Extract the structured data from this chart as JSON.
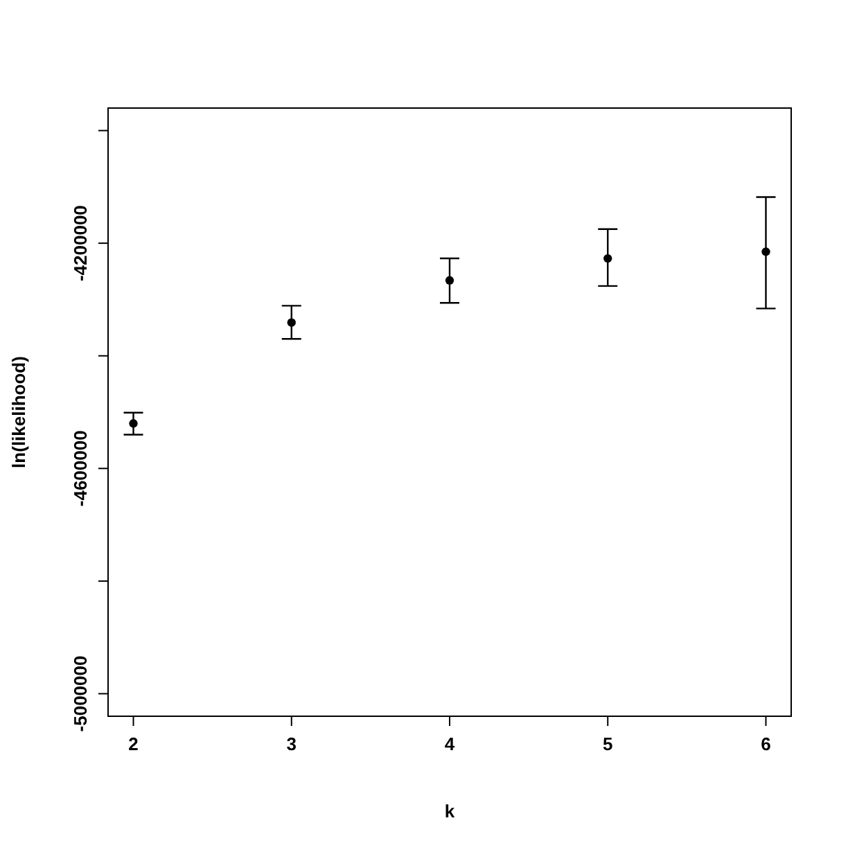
{
  "chart_data": {
    "type": "scatter",
    "xlabel": "k",
    "ylabel": "ln(likelihood)",
    "x": [
      2,
      3,
      4,
      5,
      6
    ],
    "values": [
      -4520000,
      -4341000,
      -4266000,
      -4227000,
      -4215000
    ],
    "errors": [
      [
        -4540000,
        -4501000
      ],
      [
        -4370000,
        -4311000
      ],
      [
        -4306000,
        -4227000
      ],
      [
        -4276000,
        -4175000
      ],
      [
        -4316000,
        -4118000
      ]
    ],
    "color": "#000000",
    "marker": "circle",
    "xlim": [
      1.84,
      6.16
    ],
    "xticks": [
      2,
      3,
      4,
      5,
      6
    ],
    "ylim": [
      -5040000,
      -3960000
    ],
    "yticks": [
      -5000000,
      {
        "value": -4800000,
        "label": null
      },
      -4600000,
      {
        "value": -4400000,
        "label": null
      },
      -4200000,
      {
        "value": -4000000,
        "label": null
      }
    ]
  }
}
